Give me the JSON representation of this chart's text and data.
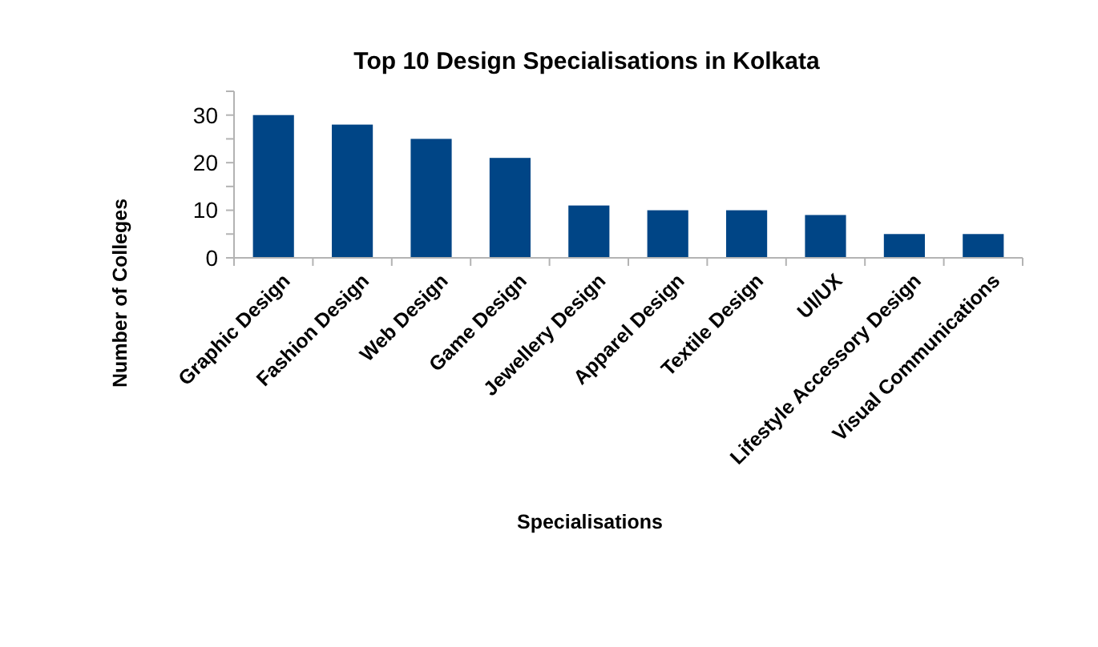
{
  "chart_data": {
    "type": "bar",
    "title": "Top 10 Design Specialisations in Kolkata",
    "xlabel": "Specialisations",
    "ylabel": "Number of Colleges",
    "categories": [
      "Graphic Design",
      "Fashion Design",
      "Web Design",
      "Game Design",
      "Jewellery Design",
      "Apparel Design",
      "Textile Design",
      "UI/UX",
      "Lifestyle Accessory Design",
      "Visual Communications"
    ],
    "values": [
      30,
      28,
      25,
      21,
      11,
      10,
      10,
      9,
      5,
      5
    ],
    "color": "#004586",
    "ylim": [
      0,
      35
    ],
    "yticks": [
      0,
      {
        "value": 5,
        "label": null
      },
      10,
      {
        "value": 15,
        "label": null
      },
      20,
      {
        "value": 25,
        "label": null
      },
      30,
      {
        "value": 35,
        "label": null
      }
    ],
    "grid": false
  }
}
